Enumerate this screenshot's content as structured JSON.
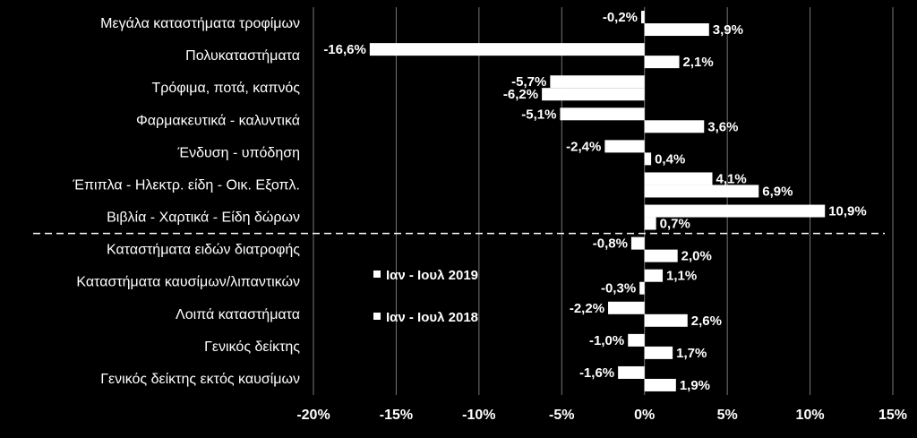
{
  "chart_data": {
    "type": "bar",
    "orientation": "horizontal",
    "xlim": [
      -20,
      15
    ],
    "x_ticks": [
      "-20%",
      "-15%",
      "-10%",
      "-5%",
      "0%",
      "5%",
      "10%",
      "15%"
    ],
    "grid": "vertical",
    "legend_position": "center-left inside plot",
    "categories": [
      "Μεγάλα καταστήματα τροφίμων",
      "Πολυκαταστήματα",
      "Τρόφιμα, ποτά, καπνός",
      "Φαρμακευτικά - καλυντικά",
      "Ένδυση - υπόδηση",
      "Έπιπλα - Ηλεκτρ. είδη - Οικ. Εξοπλ.",
      "Βιβλία - Χαρτικά - Είδη δώρων",
      "Καταστήματα ειδών διατροφής",
      "Καταστήματα καυσίμων/λιπαντικών",
      "Λοιπά καταστήματα",
      "Γενικός δείκτης",
      "Γενικός δείκτης εκτός καυσίμων"
    ],
    "separator_after_index": 6,
    "series": [
      {
        "name": "Ιαν - Ιουλ 2019",
        "values": [
          -0.2,
          -16.6,
          -5.7,
          -5.1,
          -2.4,
          4.1,
          10.9,
          -0.8,
          1.1,
          -2.2,
          -1.0,
          -1.6
        ],
        "labels": [
          "-0,2%",
          "-16,6%",
          "-5,7%",
          "-5,1%",
          "-2,4%",
          "4,1%",
          "10,9%",
          "-0,8%",
          "1,1%",
          "-2,2%",
          "-1,0%",
          "-1,6%"
        ]
      },
      {
        "name": "Ιαν - Ιουλ 2018",
        "values": [
          3.9,
          2.1,
          -6.2,
          3.6,
          0.4,
          6.9,
          0.7,
          2.0,
          -0.3,
          2.6,
          1.7,
          1.9
        ],
        "labels": [
          "3,9%",
          "2,1%",
          "-6,2%",
          "3,6%",
          "0,4%",
          "6,9%",
          "0,7%",
          "2,0%",
          "-0,3%",
          "2,6%",
          "1,7%",
          "1,9%"
        ]
      }
    ],
    "colors": {
      "background": "#000000",
      "bars": "#ffffff",
      "text": "#ffffff",
      "grid": "#777777"
    }
  }
}
